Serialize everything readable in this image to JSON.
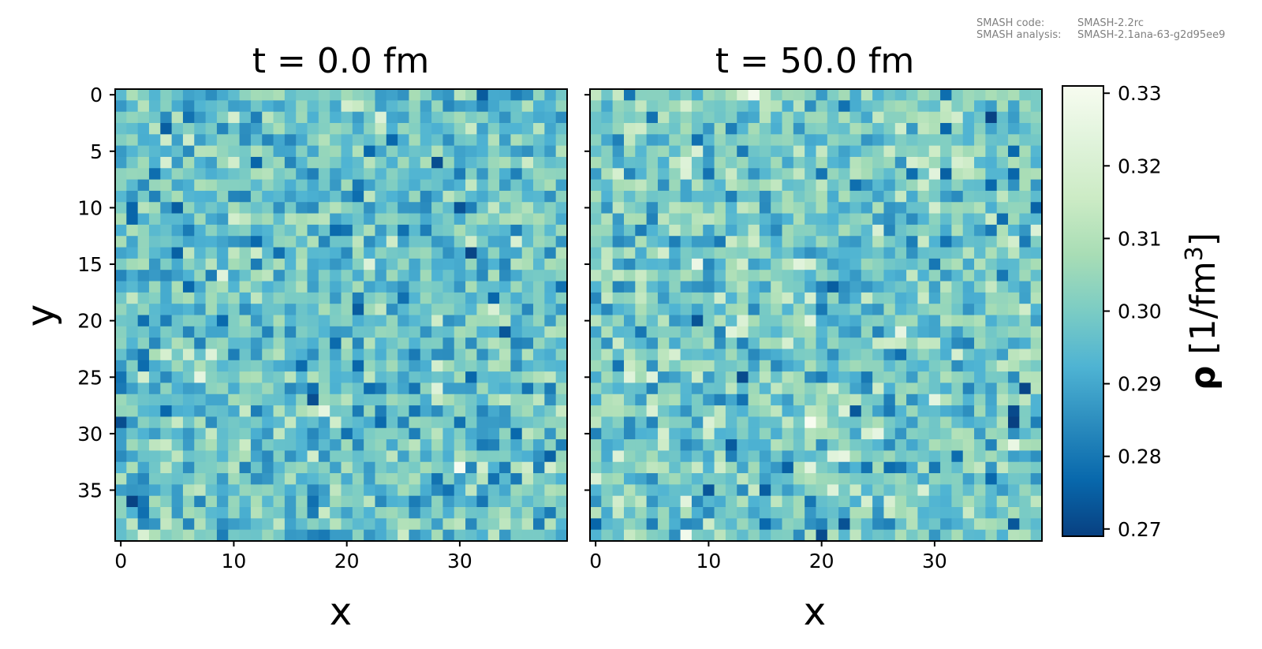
{
  "meta": {
    "code_label": "SMASH code:",
    "code_value": "SMASH-2.2rc",
    "analysis_label": "SMASH analysis:",
    "analysis_value": "SMASH-2.1ana-63-g2d95ee9"
  },
  "chart_data": {
    "type": "heatmap",
    "grid": false,
    "ylabel": "y",
    "ylabel_reversed": true,
    "y_ticks": [
      "0",
      "5",
      "10",
      "15",
      "20",
      "25",
      "30",
      "35"
    ],
    "x_ticks": [
      "0",
      "10",
      "20",
      "30"
    ],
    "xlim": [
      -0.5,
      39.5
    ],
    "ylim": [
      39.5,
      -0.5
    ],
    "grid_size": [
      40,
      40
    ],
    "panels": [
      {
        "title": "t = 0.0 fm",
        "xlabel": "x",
        "mean": 0.297,
        "spread": 0.009
      },
      {
        "title": "t = 50.0 fm",
        "xlabel": "x",
        "mean": 0.299,
        "spread": 0.01
      }
    ],
    "colorbar": {
      "label_symbol": "ρ",
      "label_units": "[1/fm",
      "label_exponent": "3",
      "label_close": "]",
      "range": [
        0.269,
        0.331
      ],
      "ticks": [
        "0.27",
        "0.28",
        "0.29",
        "0.30",
        "0.31",
        "0.32",
        "0.33"
      ],
      "colormap": "GnBu_r",
      "colors": [
        "#084081",
        "#0868ac",
        "#2b8cbe",
        "#4eb3d3",
        "#7bccc4",
        "#a8ddb5",
        "#ccebc5",
        "#e0f3db",
        "#f7fcf0"
      ]
    }
  }
}
